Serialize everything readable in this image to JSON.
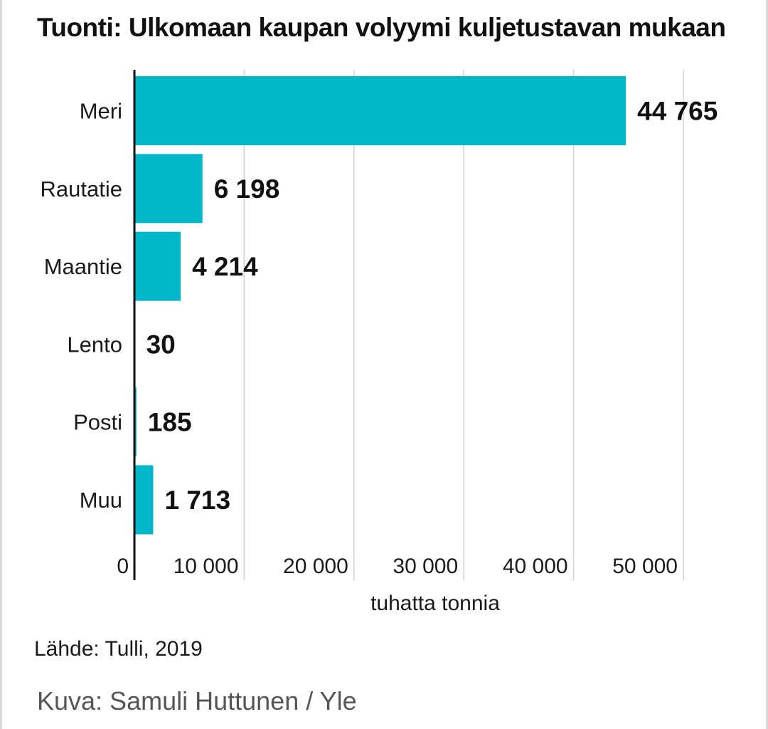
{
  "title": "Tuonti: Ulkomaan kaupan volyymi kuljetustavan mukaan",
  "source": "Lähde: Tulli, 2019",
  "credit": "Kuva: Samuli Huttunen / Yle",
  "colors": {
    "bar": "#00b6c9",
    "axis": "#111111",
    "grid": "#d0d0d0",
    "label": "#1a1a1a"
  },
  "chart_data": {
    "type": "bar",
    "orientation": "horizontal",
    "categories": [
      "Meri",
      "Rautatie",
      "Maantie",
      "Lento",
      "Posti",
      "Muu"
    ],
    "values": [
      44765,
      6198,
      4214,
      30,
      185,
      1713
    ],
    "value_labels": [
      "44 765",
      "6 198",
      "4 214",
      "30",
      "185",
      "1 713"
    ],
    "xlabel": "tuhatta tonnia",
    "xlim": [
      0,
      50000
    ],
    "xticks": [
      0,
      10000,
      20000,
      30000,
      40000,
      50000
    ],
    "xtick_labels": [
      "0",
      "10 000",
      "20 000",
      "30 000",
      "40 000",
      "50 000"
    ],
    "grid": "vertical",
    "legend": "none"
  }
}
